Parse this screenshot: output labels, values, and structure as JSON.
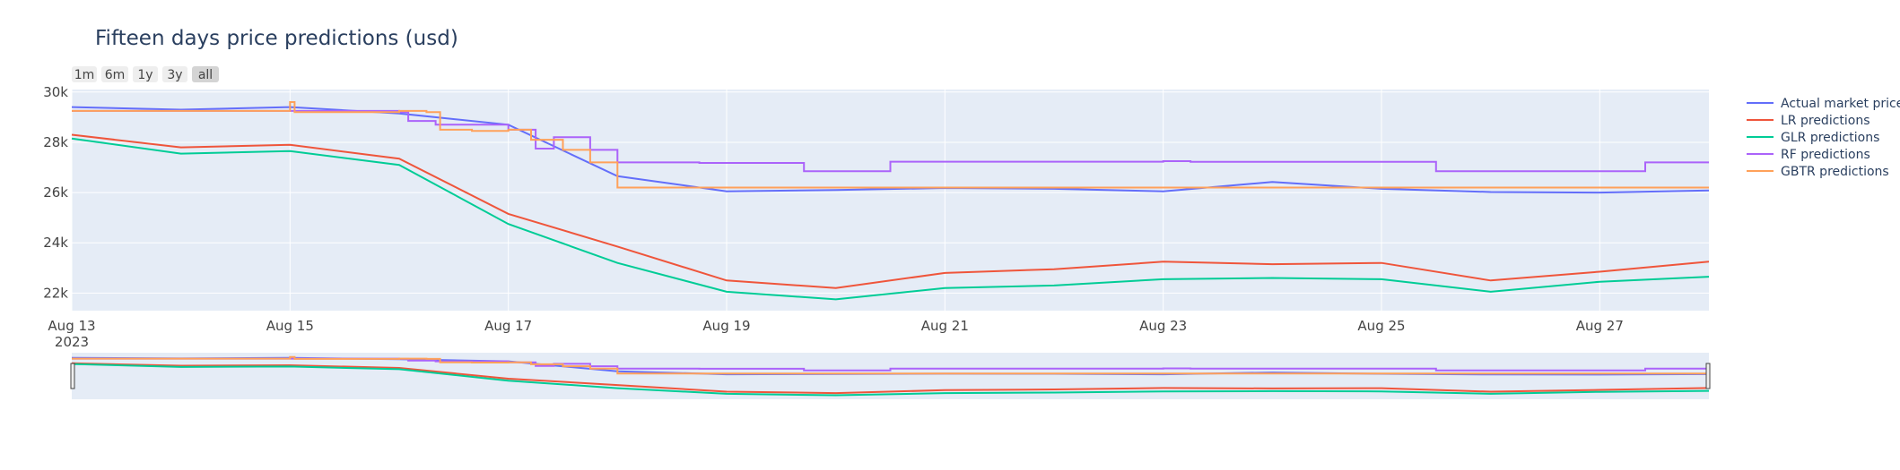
{
  "chart_data": {
    "type": "line",
    "title": "Fifteen days price predictions (usd)",
    "xlabel": "",
    "ylabel": "",
    "x_ticks": [
      "Aug 13",
      "Aug 15",
      "Aug 17",
      "Aug 19",
      "Aug 21",
      "Aug 23",
      "Aug 25",
      "Aug 27"
    ],
    "x_year_label": "2023",
    "y_ticks": [
      "22k",
      "24k",
      "26k",
      "28k",
      "30k"
    ],
    "xlim": [
      "2023-08-13",
      "2023-08-28"
    ],
    "ylim": [
      21300,
      30100
    ],
    "grid": true,
    "legend_position": "right",
    "range_buttons": [
      "1m",
      "6m",
      "1y",
      "3y",
      "all"
    ],
    "active_range_button": "all",
    "has_range_slider": true,
    "series": [
      {
        "name": "Actual market price",
        "color": "#636efa",
        "shape": "linear",
        "x": [
          "2023-08-13",
          "2023-08-14",
          "2023-08-15",
          "2023-08-16",
          "2023-08-17",
          "2023-08-18",
          "2023-08-19",
          "2023-08-20",
          "2023-08-21",
          "2023-08-22",
          "2023-08-23",
          "2023-08-24",
          "2023-08-25",
          "2023-08-26",
          "2023-08-27",
          "2023-08-28"
        ],
        "y": [
          29400,
          29300,
          29400,
          29150,
          28700,
          26650,
          26050,
          26100,
          26180,
          26150,
          26050,
          26420,
          26150,
          26020,
          26000,
          26080
        ]
      },
      {
        "name": "LR predictions",
        "color": "#ef553b",
        "shape": "linear",
        "x": [
          "2023-08-13",
          "2023-08-14",
          "2023-08-15",
          "2023-08-16",
          "2023-08-17",
          "2023-08-18",
          "2023-08-19",
          "2023-08-20",
          "2023-08-21",
          "2023-08-22",
          "2023-08-23",
          "2023-08-24",
          "2023-08-25",
          "2023-08-26",
          "2023-08-27",
          "2023-08-28"
        ],
        "y": [
          28300,
          27800,
          27900,
          27350,
          25150,
          23850,
          22500,
          22200,
          22800,
          22950,
          23250,
          23150,
          23200,
          22500,
          22850,
          23250
        ]
      },
      {
        "name": "GLR predictions",
        "color": "#00cc96",
        "shape": "linear",
        "x": [
          "2023-08-13",
          "2023-08-14",
          "2023-08-15",
          "2023-08-16",
          "2023-08-17",
          "2023-08-18",
          "2023-08-19",
          "2023-08-20",
          "2023-08-21",
          "2023-08-22",
          "2023-08-23",
          "2023-08-24",
          "2023-08-25",
          "2023-08-26",
          "2023-08-27",
          "2023-08-28"
        ],
        "y": [
          28150,
          27550,
          27650,
          27100,
          24750,
          23200,
          22050,
          21750,
          22200,
          22300,
          22550,
          22600,
          22550,
          22050,
          22450,
          22650
        ]
      },
      {
        "name": "RF predictions",
        "color": "#ab63fa",
        "shape": "hv",
        "x": [
          "2023-08-13",
          "2023-08-14",
          "2023-08-15",
          "2023-08-16",
          "2023-08-16 02:00",
          "2023-08-16 08:00",
          "2023-08-17",
          "2023-08-17 06:00",
          "2023-08-17 10:00",
          "2023-08-17 18:00",
          "2023-08-18",
          "2023-08-18 18:00",
          "2023-08-19 17:00",
          "2023-08-20 12:00",
          "2023-08-23",
          "2023-08-23 06:00",
          "2023-08-25 12:00",
          "2023-08-27 10:00",
          "2023-08-28"
        ],
        "y": [
          29250,
          29250,
          29250,
          29200,
          28850,
          28700,
          28500,
          27750,
          28200,
          27700,
          27200,
          27180,
          26850,
          27230,
          27250,
          27220,
          26850,
          27200,
          27200
        ]
      },
      {
        "name": "GBTR predictions",
        "color": "#ffa15a",
        "shape": "hv",
        "x": [
          "2023-08-13",
          "2023-08-15",
          "2023-08-15 01:00",
          "2023-08-16",
          "2023-08-16 06:00",
          "2023-08-16 09:00",
          "2023-08-16 16:00",
          "2023-08-17",
          "2023-08-17 05:00",
          "2023-08-17 12:00",
          "2023-08-17 18:00",
          "2023-08-18",
          "2023-08-28"
        ],
        "y": [
          29250,
          29600,
          29200,
          29250,
          29200,
          28500,
          28450,
          28500,
          28100,
          27700,
          27200,
          26200,
          26200
        ]
      }
    ]
  }
}
